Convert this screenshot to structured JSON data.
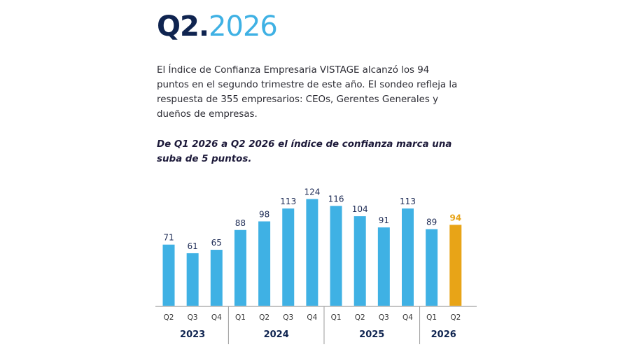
{
  "header": {
    "title_quarter": "Q2",
    "title_dot": ".",
    "title_year": "2026"
  },
  "intro": {
    "text": "El Índice de Confianza Empresaria VISTAGE alcanzó los 94 puntos en el segundo trimestre de este año. El sondeo refleja la respuesta de 355 empresarios: CEOs, Gerentes Generales y dueños de empresas."
  },
  "highlight": {
    "text": "De Q1 2026 a Q2 2026 el índice de confianza marca una suba de 5 puntos."
  },
  "chart_data": {
    "type": "bar",
    "categories": [
      "Q2",
      "Q3",
      "Q4",
      "Q1",
      "Q2",
      "Q3",
      "Q4",
      "Q1",
      "Q2",
      "Q3",
      "Q4",
      "Q1",
      "Q2"
    ],
    "values": [
      71,
      61,
      65,
      88,
      98,
      113,
      124,
      116,
      104,
      91,
      113,
      89,
      94
    ],
    "year_groups": [
      {
        "label": "2023",
        "count": 3
      },
      {
        "label": "2024",
        "count": 4
      },
      {
        "label": "2025",
        "count": 4
      },
      {
        "label": "2026",
        "count": 2
      }
    ],
    "highlight_index": 12,
    "colors": {
      "bar": "#3fb1e4",
      "highlight": "#e8a417"
    },
    "ylim": [
      0,
      124
    ],
    "grid": false,
    "legend": "none"
  }
}
